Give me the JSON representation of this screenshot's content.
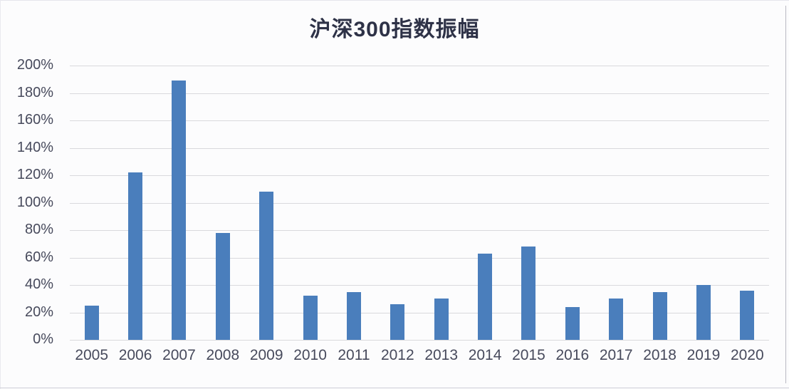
{
  "chart_data": {
    "type": "bar",
    "title": "沪深300指数振幅",
    "categories": [
      "2005",
      "2006",
      "2007",
      "2008",
      "2009",
      "2010",
      "2011",
      "2012",
      "2013",
      "2014",
      "2015",
      "2016",
      "2017",
      "2018",
      "2019",
      "2020"
    ],
    "values": [
      25,
      122,
      189,
      78,
      108,
      32,
      35,
      26,
      30,
      63,
      68,
      24,
      30,
      35,
      40,
      36
    ],
    "values_unit": "%",
    "y_ticks": [
      "200%",
      "180%",
      "160%",
      "140%",
      "120%",
      "100%",
      "80%",
      "60%",
      "40%",
      "20%",
      "0%"
    ],
    "ylim": [
      0,
      200
    ],
    "xlabel": "",
    "ylabel": "",
    "grid": true,
    "legend_position": "none"
  },
  "colors": {
    "bar_fill": "#4a7ebc",
    "title_text": "#2e3247",
    "axis_text": "#474a5c",
    "gridline": "#d9d9dd",
    "background": "#fcfcfd"
  }
}
